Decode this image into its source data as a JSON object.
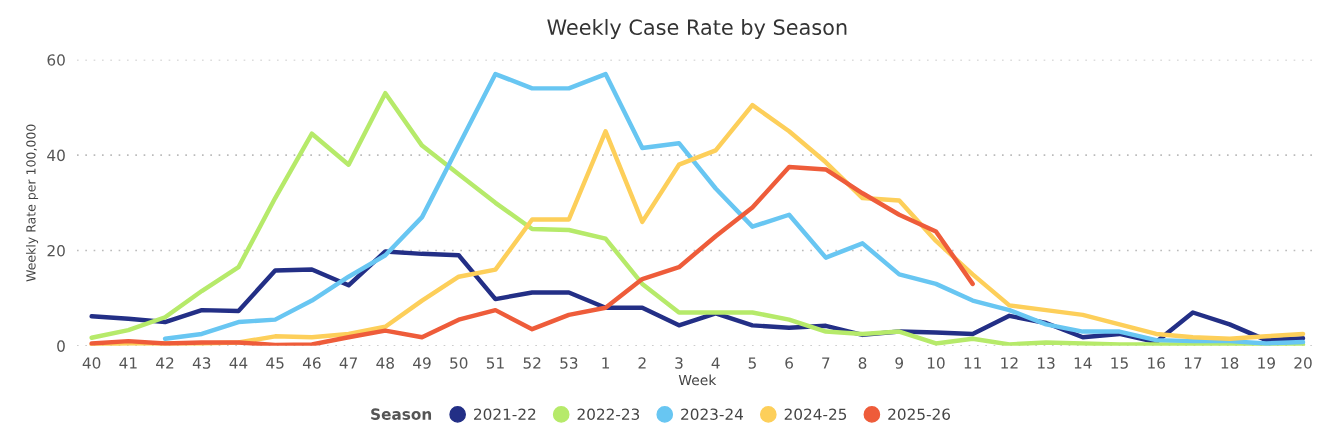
{
  "chart_data": {
    "type": "line",
    "title": "Weekly Case Rate by Season",
    "xlabel": "Week",
    "ylabel": "Weekly Rate per 100,000",
    "legend_title": "Season",
    "categories": [
      "40",
      "41",
      "42",
      "43",
      "44",
      "45",
      "46",
      "47",
      "48",
      "49",
      "50",
      "51",
      "52",
      "53",
      "1",
      "2",
      "3",
      "4",
      "5",
      "6",
      "7",
      "8",
      "9",
      "10",
      "11",
      "12",
      "13",
      "14",
      "15",
      "16",
      "17",
      "18",
      "19",
      "20"
    ],
    "ylim": [
      0,
      60
    ],
    "yticks": [
      0,
      20,
      40,
      60
    ],
    "grid": "y",
    "legend": "bottom",
    "marker": "none",
    "line_style": "solid",
    "series": [
      {
        "name": "2021-22",
        "color": "#232f86",
        "values": [
          6.2,
          5.7,
          5,
          7.5,
          7.3,
          15.8,
          16,
          12.7,
          19.8,
          19.3,
          19,
          9.8,
          11.2,
          11.2,
          8,
          8,
          4.3,
          6.8,
          4.3,
          3.8,
          4.2,
          2.3,
          3,
          2.8,
          2.5,
          6.3,
          4.8,
          1.8,
          2.5,
          0.8,
          7,
          4.5,
          1.2,
          1.6
        ]
      },
      {
        "name": "2022-23",
        "color": "#b6ea6a",
        "values": [
          1.7,
          3.3,
          6,
          11.5,
          16.5,
          31,
          44.5,
          38,
          53,
          42,
          36,
          30,
          24.5,
          24.3,
          22.5,
          13,
          7,
          7,
          7,
          5.5,
          3,
          2.5,
          3,
          0.5,
          1.5,
          0.3,
          0.7,
          0.5,
          0.3,
          0.3,
          0.3,
          0.3,
          0.3,
          0.3
        ]
      },
      {
        "name": "2023-24",
        "color": "#68c6f2",
        "values": [
          null,
          null,
          1.5,
          2.5,
          5,
          5.5,
          9.5,
          14.5,
          19,
          27,
          42,
          57,
          54,
          54,
          57,
          41.5,
          42.5,
          33,
          25,
          27.5,
          18.5,
          21.5,
          15,
          13,
          9.5,
          7.5,
          4.5,
          3,
          3,
          1.2,
          1,
          1,
          0.5,
          0.8
        ]
      },
      {
        "name": "2024-25",
        "color": "#fdcf5a",
        "values": [
          0.3,
          0.5,
          0.5,
          0.5,
          0.7,
          2,
          1.8,
          2.5,
          4,
          9.5,
          14.5,
          16,
          26.5,
          26.5,
          45,
          26,
          38,
          41,
          50.5,
          45,
          38.5,
          31,
          30.5,
          22,
          15,
          8.5,
          7.5,
          6.5,
          4.5,
          2.5,
          1.8,
          1.5,
          2,
          2.5
        ]
      },
      {
        "name": "2025-26",
        "color": "#ee5c3a",
        "values": [
          0.5,
          1,
          0.5,
          0.7,
          0.7,
          0.2,
          0.3,
          1.8,
          3.2,
          1.8,
          5.5,
          7.5,
          3.5,
          6.5,
          8,
          14,
          16.5,
          23,
          29,
          37.5,
          37,
          32,
          27.5,
          24,
          13,
          null,
          null,
          null,
          null,
          null,
          null,
          null,
          null,
          null
        ]
      }
    ]
  }
}
